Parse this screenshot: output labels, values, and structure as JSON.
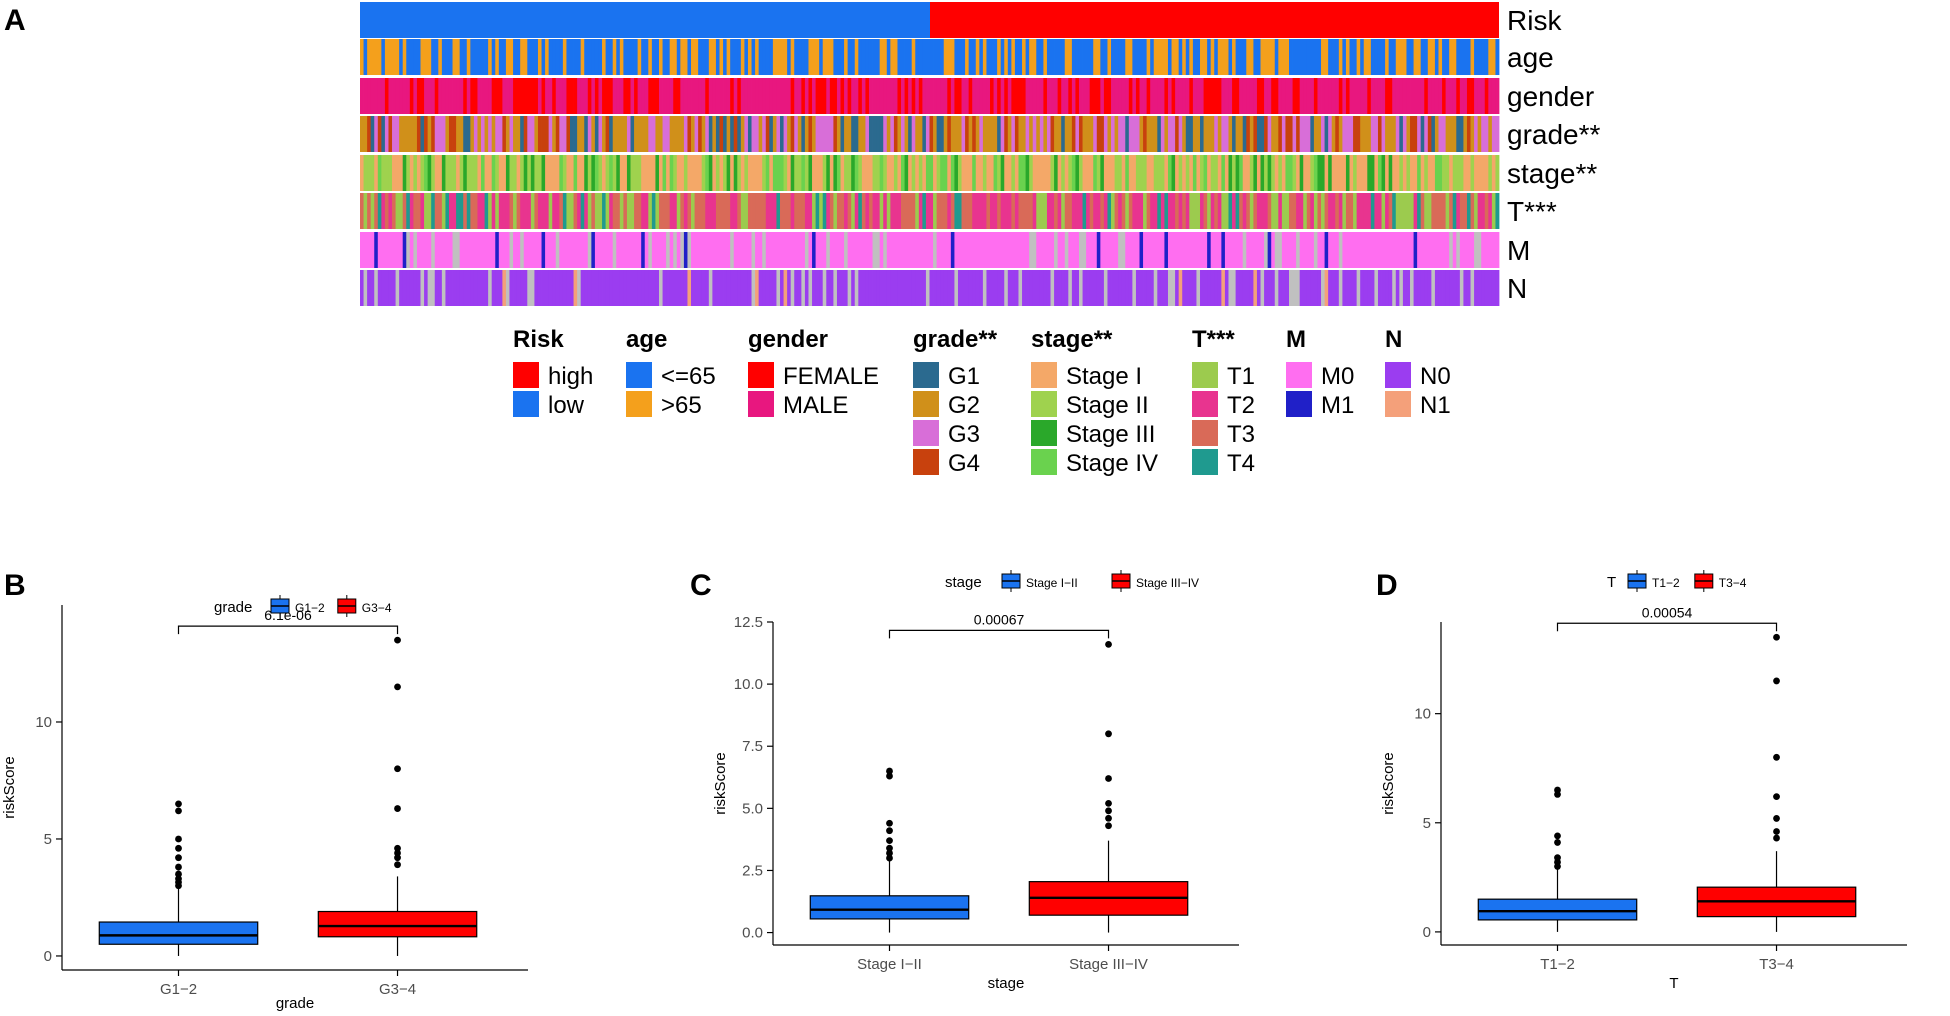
{
  "panels": {
    "A": {
      "label": "A",
      "tracks": [
        {
          "name": "Risk",
          "categories": [
            "low",
            "high"
          ],
          "colors": {
            "low": "#1a73f0",
            "high": "#ff0000"
          },
          "low_fraction": 0.5
        },
        {
          "name": "age",
          "categories": [
            "<=65",
            ">65"
          ],
          "colors": {
            "<=65": "#1a73f0",
            ">65": "#f4a01c"
          }
        },
        {
          "name": "gender",
          "categories": [
            "FEMALE",
            "MALE"
          ],
          "colors": {
            "FEMALE": "#ff0000",
            "MALE": "#e8177f"
          }
        },
        {
          "name": "grade**",
          "categories": [
            "G1",
            "G2",
            "G3",
            "G4"
          ],
          "colors": {
            "G1": "#2b6a8f",
            "G2": "#d0901a",
            "G3": "#d86ed8",
            "G4": "#c8410d"
          }
        },
        {
          "name": "stage**",
          "categories": [
            "Stage I",
            "Stage II",
            "Stage III",
            "Stage IV"
          ],
          "colors": {
            "Stage I": "#f4a868",
            "Stage II": "#9fd24e",
            "Stage III": "#2aa82a",
            "Stage IV": "#6ad24e"
          }
        },
        {
          "name": "T***",
          "categories": [
            "T1",
            "T2",
            "T3",
            "T4"
          ],
          "colors": {
            "T1": "#9ccb4e",
            "T2": "#e8348f",
            "T3": "#d96a58",
            "T4": "#1f9a8f"
          }
        },
        {
          "name": "M",
          "categories": [
            "M0",
            "M1"
          ],
          "colors": {
            "M0": "#ff6ef0",
            "M1": "#2020c8"
          }
        },
        {
          "name": "N",
          "categories": [
            "N0",
            "N1"
          ],
          "colors": {
            "N0": "#9b3df0",
            "N1": "#f4a07a"
          }
        }
      ],
      "legend": [
        {
          "title": "Risk",
          "items": [
            {
              "label": "high",
              "color": "#ff0000"
            },
            {
              "label": "low",
              "color": "#1a73f0"
            }
          ]
        },
        {
          "title": "age",
          "items": [
            {
              "label": "<=65",
              "color": "#1a73f0"
            },
            {
              "label": ">65",
              "color": "#f4a01c"
            }
          ]
        },
        {
          "title": "gender",
          "items": [
            {
              "label": "FEMALE",
              "color": "#ff0000"
            },
            {
              "label": "MALE",
              "color": "#e8177f"
            }
          ]
        },
        {
          "title": "grade**",
          "items": [
            {
              "label": "G1",
              "color": "#2b6a8f"
            },
            {
              "label": "G2",
              "color": "#d0901a"
            },
            {
              "label": "G3",
              "color": "#d86ed8"
            },
            {
              "label": "G4",
              "color": "#c8410d"
            }
          ]
        },
        {
          "title": "stage**",
          "items": [
            {
              "label": "Stage I",
              "color": "#f4a868"
            },
            {
              "label": "Stage II",
              "color": "#9fd24e"
            },
            {
              "label": "Stage III",
              "color": "#2aa82a"
            },
            {
              "label": "Stage IV",
              "color": "#6ad24e"
            }
          ]
        },
        {
          "title": "T***",
          "items": [
            {
              "label": "T1",
              "color": "#9ccb4e"
            },
            {
              "label": "T2",
              "color": "#e8348f"
            },
            {
              "label": "T3",
              "color": "#d96a58"
            },
            {
              "label": "T4",
              "color": "#1f9a8f"
            }
          ]
        },
        {
          "title": "M",
          "items": [
            {
              "label": "M0",
              "color": "#ff6ef0"
            },
            {
              "label": "M1",
              "color": "#2020c8"
            }
          ]
        },
        {
          "title": "N",
          "items": [
            {
              "label": "N0",
              "color": "#9b3df0"
            },
            {
              "label": "N1",
              "color": "#f4a07a"
            }
          ]
        }
      ],
      "missing_color": "#c0c0c0"
    }
  },
  "chart_data": [
    {
      "panel": "B",
      "type": "box",
      "legend_title": "grade",
      "xlabel": "grade",
      "ylabel": "riskScore",
      "ylim": [
        -0.6,
        15
      ],
      "yticks": [
        {
          "v": 0,
          "label": "0"
        },
        {
          "v": 5,
          "label": "5"
        },
        {
          "v": 10,
          "label": "10"
        }
      ],
      "pvalue": "6.1e-06",
      "groups": [
        {
          "label": "G1-2",
          "tick": "G1−2",
          "color": "#1a73f0",
          "q1": 0.5,
          "median": 0.88,
          "q3": 1.45,
          "whisker_low": 0.0,
          "whisker_high": 2.9,
          "outliers": [
            3.0,
            3.15,
            3.3,
            3.5,
            3.8,
            4.2,
            4.6,
            5.0,
            6.2,
            6.5
          ]
        },
        {
          "label": "G3-4",
          "tick": "G3−4",
          "color": "#ff0000",
          "q1": 0.82,
          "median": 1.28,
          "q3": 1.9,
          "whisker_low": 0.0,
          "whisker_high": 3.4,
          "outliers": [
            3.9,
            4.2,
            4.4,
            4.6,
            6.3,
            8.0,
            11.5,
            13.5
          ]
        }
      ]
    },
    {
      "panel": "C",
      "type": "box",
      "legend_title": "stage",
      "xlabel": "stage",
      "ylabel": "riskScore",
      "ylim": [
        -0.5,
        12.5
      ],
      "yticks": [
        {
          "v": 0,
          "label": "0.0"
        },
        {
          "v": 2.5,
          "label": "2.5"
        },
        {
          "v": 5,
          "label": "5.0"
        },
        {
          "v": 7.5,
          "label": "7.5"
        },
        {
          "v": 10,
          "label": "10.0"
        },
        {
          "v": 12.5,
          "label": "12.5"
        }
      ],
      "pvalue": "0.00067",
      "groups": [
        {
          "label": "Stage I-II",
          "tick": "Stage I−II",
          "color": "#1a73f0",
          "q1": 0.55,
          "median": 0.92,
          "q3": 1.48,
          "whisker_low": 0.0,
          "whisker_high": 2.9,
          "outliers": [
            3.0,
            3.2,
            3.4,
            3.7,
            4.1,
            4.4,
            6.3,
            6.5
          ]
        },
        {
          "label": "Stage III-IV",
          "tick": "Stage III−IV",
          "color": "#ff0000",
          "q1": 0.7,
          "median": 1.4,
          "q3": 2.05,
          "whisker_low": 0.0,
          "whisker_high": 3.7,
          "outliers": [
            4.3,
            4.6,
            4.9,
            5.2,
            6.2,
            8.0,
            11.6
          ]
        }
      ]
    },
    {
      "panel": "D",
      "type": "box",
      "legend_title": "T",
      "xlabel": "T",
      "ylabel": "riskScore",
      "ylim": [
        -0.6,
        14.2
      ],
      "yticks": [
        {
          "v": 0,
          "label": "0"
        },
        {
          "v": 5,
          "label": "5"
        },
        {
          "v": 10,
          "label": "10"
        }
      ],
      "pvalue": "0.00054",
      "groups": [
        {
          "label": "T1-2",
          "tick": "T1−2",
          "color": "#1a73f0",
          "q1": 0.55,
          "median": 0.95,
          "q3": 1.5,
          "whisker_low": 0.0,
          "whisker_high": 2.9,
          "outliers": [
            3.0,
            3.2,
            3.4,
            4.1,
            4.4,
            6.3,
            6.5
          ]
        },
        {
          "label": "T3-4",
          "tick": "T3−4",
          "color": "#ff0000",
          "q1": 0.7,
          "median": 1.4,
          "q3": 2.05,
          "whisker_low": 0.0,
          "whisker_high": 3.7,
          "outliers": [
            4.3,
            4.6,
            5.2,
            6.2,
            8.0,
            11.5,
            13.5
          ]
        }
      ]
    }
  ]
}
